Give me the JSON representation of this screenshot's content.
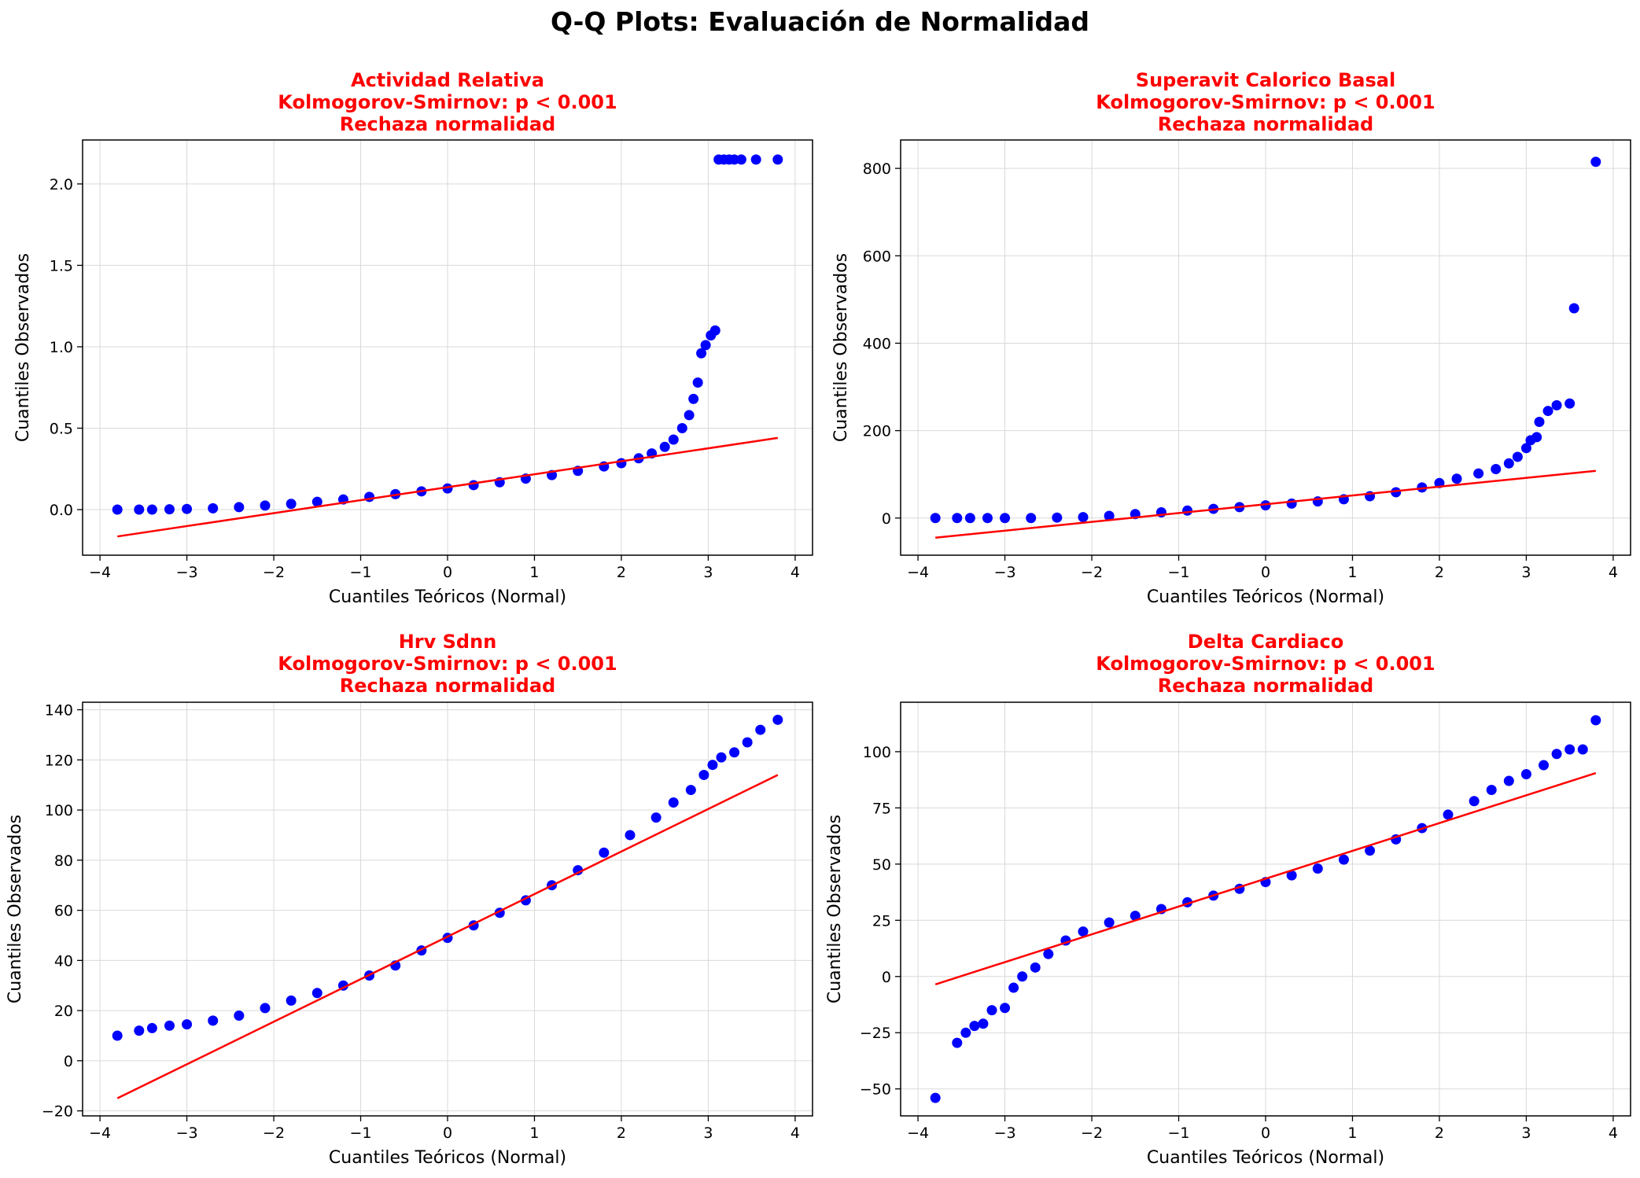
{
  "figure": {
    "title": "Q-Q Plots: Evaluación de Normalidad"
  },
  "colors": {
    "points": "#0000ff",
    "line": "#ff0000",
    "title": "#ff0000",
    "grid": "#d9d9d9"
  },
  "chart_data": [
    {
      "type": "scatter",
      "title": [
        "Actividad Relativa",
        "Kolmogorov-Smirnov: p < 0.001",
        "Rechaza normalidad"
      ],
      "xlabel": "Cuantiles Teóricos (Normal)",
      "ylabel": "Cuantiles Observados",
      "xlim": [
        -4.2,
        4.2
      ],
      "ylim": [
        -0.28,
        2.27
      ],
      "xticks": [
        -4,
        -3,
        -2,
        -1,
        0,
        1,
        2,
        3,
        4
      ],
      "xtick_labels": [
        "−4",
        "−3",
        "−2",
        "−1",
        "0",
        "1",
        "2",
        "3",
        "4"
      ],
      "yticks": [
        0.0,
        0.5,
        1.0,
        1.5,
        2.0
      ],
      "ytick_labels": [
        "0.0",
        "0.5",
        "1.0",
        "1.5",
        "2.0"
      ],
      "grid": true,
      "fit_line": [
        [
          -3.8,
          -0.165
        ],
        [
          3.8,
          0.44
        ]
      ],
      "points": [
        [
          -3.8,
          0.0
        ],
        [
          -3.55,
          0.0
        ],
        [
          -3.4,
          0.0
        ],
        [
          -3.2,
          0.002
        ],
        [
          -3.0,
          0.004
        ],
        [
          -2.7,
          0.008
        ],
        [
          -2.4,
          0.015
        ],
        [
          -2.1,
          0.025
        ],
        [
          -1.8,
          0.035
        ],
        [
          -1.5,
          0.048
        ],
        [
          -1.2,
          0.062
        ],
        [
          -0.9,
          0.078
        ],
        [
          -0.6,
          0.095
        ],
        [
          -0.3,
          0.112
        ],
        [
          0.0,
          0.13
        ],
        [
          0.3,
          0.15
        ],
        [
          0.6,
          0.168
        ],
        [
          0.9,
          0.19
        ],
        [
          1.2,
          0.212
        ],
        [
          1.5,
          0.238
        ],
        [
          1.8,
          0.265
        ],
        [
          2.0,
          0.285
        ],
        [
          2.2,
          0.315
        ],
        [
          2.35,
          0.345
        ],
        [
          2.5,
          0.385
        ],
        [
          2.6,
          0.43
        ],
        [
          2.7,
          0.5
        ],
        [
          2.78,
          0.58
        ],
        [
          2.83,
          0.68
        ],
        [
          2.88,
          0.78
        ],
        [
          2.92,
          0.96
        ],
        [
          2.97,
          1.01
        ],
        [
          3.03,
          1.07
        ],
        [
          3.08,
          1.1
        ],
        [
          3.12,
          2.15
        ],
        [
          3.18,
          2.15
        ],
        [
          3.24,
          2.15
        ],
        [
          3.3,
          2.15
        ],
        [
          3.38,
          2.15
        ],
        [
          3.55,
          2.15
        ],
        [
          3.8,
          2.15
        ]
      ]
    },
    {
      "type": "scatter",
      "title": [
        "Superavit Calorico Basal",
        "Kolmogorov-Smirnov: p < 0.001",
        "Rechaza normalidad"
      ],
      "xlabel": "Cuantiles Teóricos (Normal)",
      "ylabel": "Cuantiles Observados",
      "xlim": [
        -4.2,
        4.2
      ],
      "ylim": [
        -85,
        865
      ],
      "xticks": [
        -4,
        -3,
        -2,
        -1,
        0,
        1,
        2,
        3,
        4
      ],
      "xtick_labels": [
        "−4",
        "−3",
        "−2",
        "−1",
        "0",
        "1",
        "2",
        "3",
        "4"
      ],
      "yticks": [
        0,
        200,
        400,
        600,
        800
      ],
      "ytick_labels": [
        "0",
        "200",
        "400",
        "600",
        "800"
      ],
      "grid": true,
      "fit_line": [
        [
          -3.8,
          -45
        ],
        [
          3.8,
          108
        ]
      ],
      "points": [
        [
          -3.8,
          0
        ],
        [
          -3.55,
          0
        ],
        [
          -3.4,
          0
        ],
        [
          -3.2,
          0
        ],
        [
          -3.0,
          0
        ],
        [
          -2.7,
          0
        ],
        [
          -2.4,
          1
        ],
        [
          -2.1,
          2
        ],
        [
          -1.8,
          5
        ],
        [
          -1.5,
          9
        ],
        [
          -1.2,
          13
        ],
        [
          -0.9,
          17
        ],
        [
          -0.6,
          21
        ],
        [
          -0.3,
          25
        ],
        [
          0.0,
          29
        ],
        [
          0.3,
          33
        ],
        [
          0.6,
          38
        ],
        [
          0.9,
          43
        ],
        [
          1.2,
          50
        ],
        [
          1.5,
          59
        ],
        [
          1.8,
          70
        ],
        [
          2.0,
          80
        ],
        [
          2.2,
          90
        ],
        [
          2.45,
          102
        ],
        [
          2.65,
          112
        ],
        [
          2.8,
          125
        ],
        [
          2.9,
          140
        ],
        [
          3.0,
          160
        ],
        [
          3.05,
          178
        ],
        [
          3.12,
          185
        ],
        [
          3.15,
          220
        ],
        [
          3.25,
          245
        ],
        [
          3.35,
          258
        ],
        [
          3.5,
          262
        ],
        [
          3.55,
          480
        ],
        [
          3.8,
          815
        ]
      ]
    },
    {
      "type": "scatter",
      "title": [
        "Hrv Sdnn",
        "Kolmogorov-Smirnov: p < 0.001",
        "Rechaza normalidad"
      ],
      "xlabel": "Cuantiles Teóricos (Normal)",
      "ylabel": "Cuantiles Observados",
      "xlim": [
        -4.2,
        4.2
      ],
      "ylim": [
        -22,
        143
      ],
      "xticks": [
        -4,
        -3,
        -2,
        -1,
        0,
        1,
        2,
        3,
        4
      ],
      "xtick_labels": [
        "−4",
        "−3",
        "−2",
        "−1",
        "0",
        "1",
        "2",
        "3",
        "4"
      ],
      "yticks": [
        -20,
        0,
        20,
        40,
        60,
        80,
        100,
        120,
        140
      ],
      "ytick_labels": [
        "−20",
        "0",
        "20",
        "40",
        "60",
        "80",
        "100",
        "120",
        "140"
      ],
      "grid": true,
      "fit_line": [
        [
          -3.8,
          -15
        ],
        [
          3.8,
          114
        ]
      ],
      "points": [
        [
          -3.8,
          10
        ],
        [
          -3.55,
          12
        ],
        [
          -3.4,
          13
        ],
        [
          -3.2,
          14
        ],
        [
          -3.0,
          14.5
        ],
        [
          -2.7,
          16
        ],
        [
          -2.4,
          18
        ],
        [
          -2.1,
          21
        ],
        [
          -1.8,
          24
        ],
        [
          -1.5,
          27
        ],
        [
          -1.2,
          30
        ],
        [
          -0.9,
          34
        ],
        [
          -0.6,
          38
        ],
        [
          -0.3,
          44
        ],
        [
          0.0,
          49
        ],
        [
          0.3,
          54
        ],
        [
          0.6,
          59
        ],
        [
          0.9,
          64
        ],
        [
          1.2,
          70
        ],
        [
          1.5,
          76
        ],
        [
          1.8,
          83
        ],
        [
          2.1,
          90
        ],
        [
          2.4,
          97
        ],
        [
          2.6,
          103
        ],
        [
          2.8,
          108
        ],
        [
          2.95,
          114
        ],
        [
          3.05,
          118
        ],
        [
          3.15,
          121
        ],
        [
          3.3,
          123
        ],
        [
          3.45,
          127
        ],
        [
          3.6,
          132
        ],
        [
          3.8,
          136
        ]
      ]
    },
    {
      "type": "scatter",
      "title": [
        "Delta Cardiaco",
        "Kolmogorov-Smirnov: p < 0.001",
        "Rechaza normalidad"
      ],
      "xlabel": "Cuantiles Teóricos (Normal)",
      "ylabel": "Cuantiles Observados",
      "xlim": [
        -4.2,
        4.2
      ],
      "ylim": [
        -62,
        122
      ],
      "xticks": [
        -4,
        -3,
        -2,
        -1,
        0,
        1,
        2,
        3,
        4
      ],
      "xtick_labels": [
        "−4",
        "−3",
        "−2",
        "−1",
        "0",
        "1",
        "2",
        "3",
        "4"
      ],
      "yticks": [
        -50,
        -25,
        0,
        25,
        50,
        75,
        100
      ],
      "ytick_labels": [
        "−50",
        "−25",
        "0",
        "25",
        "50",
        "75",
        "100"
      ],
      "grid": true,
      "fit_line": [
        [
          -3.8,
          -3.5
        ],
        [
          3.8,
          90.5
        ]
      ],
      "points": [
        [
          -3.8,
          -54
        ],
        [
          -3.55,
          -29.5
        ],
        [
          -3.45,
          -25
        ],
        [
          -3.35,
          -22
        ],
        [
          -3.25,
          -21
        ],
        [
          -3.15,
          -15
        ],
        [
          -3.0,
          -14
        ],
        [
          -2.9,
          -5
        ],
        [
          -2.8,
          0
        ],
        [
          -2.65,
          4
        ],
        [
          -2.5,
          10
        ],
        [
          -2.3,
          16
        ],
        [
          -2.1,
          20
        ],
        [
          -1.8,
          24
        ],
        [
          -1.5,
          27
        ],
        [
          -1.2,
          30
        ],
        [
          -0.9,
          33
        ],
        [
          -0.6,
          36
        ],
        [
          -0.3,
          39
        ],
        [
          0.0,
          42
        ],
        [
          0.3,
          45
        ],
        [
          0.6,
          48
        ],
        [
          0.9,
          52
        ],
        [
          1.2,
          56
        ],
        [
          1.5,
          61
        ],
        [
          1.8,
          66
        ],
        [
          2.1,
          72
        ],
        [
          2.4,
          78
        ],
        [
          2.6,
          83
        ],
        [
          2.8,
          87
        ],
        [
          3.0,
          90
        ],
        [
          3.2,
          94
        ],
        [
          3.35,
          99
        ],
        [
          3.5,
          101
        ],
        [
          3.65,
          101
        ],
        [
          3.8,
          114
        ]
      ]
    }
  ]
}
